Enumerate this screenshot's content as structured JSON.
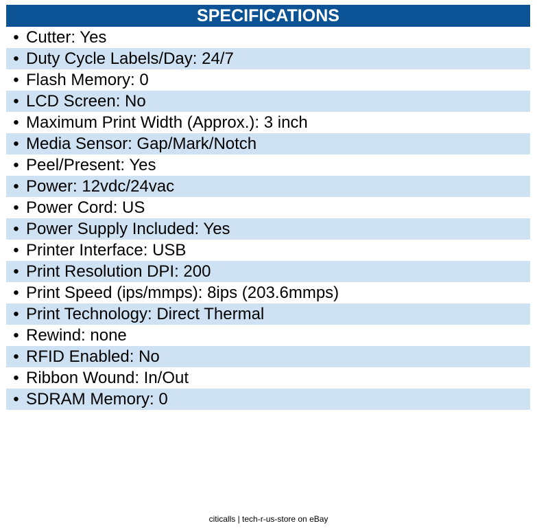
{
  "header": {
    "title": "SPECIFICATIONS"
  },
  "colors": {
    "header_bg": "#0b5394",
    "alt_row_bg": "#cfe2f3"
  },
  "specs": [
    "Cutter: Yes",
    "Duty Cycle Labels/Day: 24/7",
    "Flash Memory: 0",
    "LCD Screen: No",
    "Maximum Print Width (Approx.): 3 inch",
    "Media Sensor: Gap/Mark/Notch",
    "Peel/Present: Yes",
    "Power: 12vdc/24vac",
    "Power Cord: US",
    "Power Supply Included: Yes",
    "Printer Interface: USB",
    "Print Resolution DPI: 200",
    "Print Speed (ips/mmps): 8ips (203.6mmps)",
    "Print Technology: Direct Thermal",
    "Rewind: none",
    "RFID Enabled: No",
    "Ribbon Wound: In/Out",
    "SDRAM Memory: 0"
  ],
  "footer": {
    "text": "citicalls | tech-r-us-store on eBay"
  }
}
